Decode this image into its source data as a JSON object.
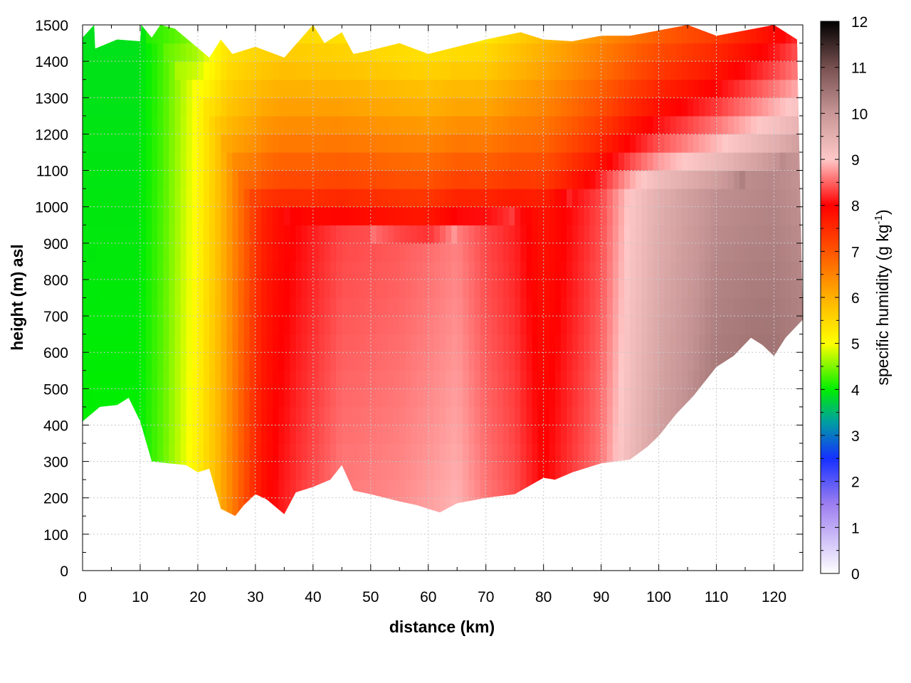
{
  "chart_data": {
    "type": "heatmap",
    "title": "",
    "xlabel": "distance (km)",
    "ylabel": "height (m) asl",
    "xlim": [
      0,
      125
    ],
    "ylim": [
      0,
      1500
    ],
    "x_ticks": [
      "0",
      "10",
      "20",
      "30",
      "40",
      "50",
      "60",
      "70",
      "80",
      "90",
      "100",
      "110",
      "120"
    ],
    "y_ticks": [
      "0",
      "100",
      "200",
      "300",
      "400",
      "500",
      "600",
      "700",
      "800",
      "900",
      "1000",
      "1100",
      "1200",
      "1300",
      "1400",
      "1500"
    ],
    "colorbar": {
      "label_main": "specific humidity (g kg",
      "label_sup": "-1",
      "label_end": ")",
      "range": [
        0,
        12
      ],
      "ticks": [
        "0",
        "1",
        "2",
        "3",
        "4",
        "5",
        "6",
        "7",
        "8",
        "9",
        "10",
        "11",
        "12"
      ],
      "colors": [
        {
          "value": 0,
          "color": "#ffffff"
        },
        {
          "value": 1.5,
          "color": "#9d7ff0"
        },
        {
          "value": 2.5,
          "color": "#1530ff"
        },
        {
          "value": 3.3,
          "color": "#00a0a0"
        },
        {
          "value": 4.0,
          "color": "#00ee00"
        },
        {
          "value": 5.0,
          "color": "#ffff00"
        },
        {
          "value": 6.0,
          "color": "#ffb000"
        },
        {
          "value": 7.0,
          "color": "#ff5500"
        },
        {
          "value": 8.0,
          "color": "#ff0000"
        },
        {
          "value": 9.0,
          "color": "#ffc8c8"
        },
        {
          "value": 10.0,
          "color": "#c89696"
        },
        {
          "value": 11.0,
          "color": "#785050"
        },
        {
          "value": 12.0,
          "color": "#000000"
        }
      ]
    },
    "terrain_bottom": [
      [
        0,
        410
      ],
      [
        3,
        450
      ],
      [
        6,
        455
      ],
      [
        8,
        475
      ],
      [
        10,
        410
      ],
      [
        12,
        300
      ],
      [
        15,
        295
      ],
      [
        18,
        290
      ],
      [
        20,
        270
      ],
      [
        22,
        280
      ],
      [
        24,
        170
      ],
      [
        26.5,
        150
      ],
      [
        28,
        180
      ],
      [
        30,
        210
      ],
      [
        32,
        195
      ],
      [
        35,
        155
      ],
      [
        37,
        215
      ],
      [
        40,
        230
      ],
      [
        43,
        250
      ],
      [
        45,
        290
      ],
      [
        47,
        220
      ],
      [
        50,
        210
      ],
      [
        55,
        190
      ],
      [
        58,
        180
      ],
      [
        62,
        160
      ],
      [
        65,
        185
      ],
      [
        70,
        200
      ],
      [
        75,
        210
      ],
      [
        80,
        255
      ],
      [
        82,
        250
      ],
      [
        85,
        270
      ],
      [
        90,
        295
      ],
      [
        95,
        305
      ],
      [
        98,
        340
      ],
      [
        100,
        370
      ],
      [
        103,
        430
      ],
      [
        106,
        480
      ],
      [
        110,
        560
      ],
      [
        113,
        590
      ],
      [
        116,
        640
      ],
      [
        118,
        620
      ],
      [
        120,
        590
      ],
      [
        122,
        640
      ],
      [
        125,
        690
      ]
    ],
    "profile_top": [
      [
        0,
        1465
      ],
      [
        2,
        1500
      ],
      [
        2.2,
        1435
      ],
      [
        6,
        1460
      ],
      [
        10,
        1455
      ],
      [
        10.2,
        1500
      ],
      [
        12,
        1465
      ],
      [
        13.5,
        1500
      ],
      [
        16,
        1490
      ],
      [
        22,
        1410
      ],
      [
        24,
        1460
      ],
      [
        26,
        1420
      ],
      [
        30,
        1440
      ],
      [
        35,
        1410
      ],
      [
        40,
        1500
      ],
      [
        42,
        1450
      ],
      [
        45,
        1480
      ],
      [
        47,
        1420
      ],
      [
        50,
        1430
      ],
      [
        55,
        1450
      ],
      [
        60,
        1420
      ],
      [
        65,
        1440
      ],
      [
        70,
        1460
      ],
      [
        76,
        1480
      ],
      [
        80,
        1460
      ],
      [
        85,
        1455
      ],
      [
        90,
        1470
      ],
      [
        95,
        1470
      ],
      [
        100,
        1485
      ],
      [
        105,
        1500
      ],
      [
        110,
        1470
      ],
      [
        115,
        1485
      ],
      [
        120,
        1500
      ],
      [
        124,
        1460
      ]
    ],
    "surface_q_profile": [
      [
        0,
        4.0
      ],
      [
        10,
        4.0
      ],
      [
        14,
        4.4
      ],
      [
        17,
        4.8
      ],
      [
        20,
        5.2
      ],
      [
        23,
        5.8
      ],
      [
        27,
        6.8
      ],
      [
        31,
        7.8
      ],
      [
        34,
        8.1
      ],
      [
        38,
        8.3
      ],
      [
        45,
        8.6
      ],
      [
        55,
        8.7
      ],
      [
        65,
        8.9
      ],
      [
        70,
        8.6
      ],
      [
        75,
        8.4
      ],
      [
        80,
        8.0
      ],
      [
        85,
        8.3
      ],
      [
        90,
        8.6
      ],
      [
        95,
        9.3
      ],
      [
        100,
        9.8
      ],
      [
        110,
        10.4
      ],
      [
        120,
        10.5
      ],
      [
        125,
        10.3
      ]
    ],
    "top_q_profile": [
      [
        0,
        4.0
      ],
      [
        10,
        4.1
      ],
      [
        14,
        4.2
      ],
      [
        20,
        4.5
      ],
      [
        25,
        5.2
      ],
      [
        35,
        5.4
      ],
      [
        45,
        5.3
      ],
      [
        60,
        5.1
      ],
      [
        70,
        5.2
      ],
      [
        80,
        5.8
      ],
      [
        90,
        6.3
      ],
      [
        100,
        6.8
      ],
      [
        110,
        7.2
      ],
      [
        120,
        7.8
      ],
      [
        125,
        8.2
      ]
    ],
    "moist_layer_top_m": [
      [
        0,
        1500
      ],
      [
        10,
        1500
      ],
      [
        20,
        1300
      ],
      [
        30,
        1000
      ],
      [
        40,
        950
      ],
      [
        60,
        900
      ],
      [
        70,
        950
      ],
      [
        80,
        1000
      ],
      [
        90,
        1050
      ],
      [
        100,
        1050
      ],
      [
        110,
        1050
      ],
      [
        120,
        1100
      ],
      [
        125,
        1150
      ]
    ]
  }
}
